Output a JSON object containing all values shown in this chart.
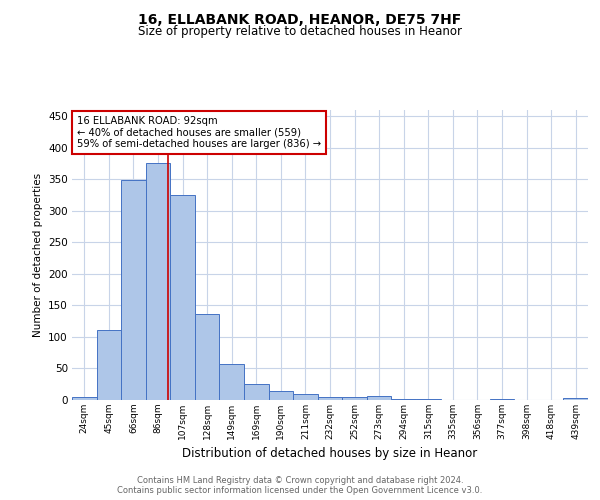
{
  "title1": "16, ELLABANK ROAD, HEANOR, DE75 7HF",
  "title2": "Size of property relative to detached houses in Heanor",
  "xlabel": "Distribution of detached houses by size in Heanor",
  "ylabel": "Number of detached properties",
  "categories": [
    "24sqm",
    "45sqm",
    "66sqm",
    "86sqm",
    "107sqm",
    "128sqm",
    "149sqm",
    "169sqm",
    "190sqm",
    "211sqm",
    "232sqm",
    "252sqm",
    "273sqm",
    "294sqm",
    "315sqm",
    "335sqm",
    "356sqm",
    "377sqm",
    "398sqm",
    "418sqm",
    "439sqm"
  ],
  "values": [
    5,
    111,
    349,
    376,
    325,
    136,
    57,
    26,
    14,
    9,
    4,
    4,
    6,
    2,
    1,
    0,
    0,
    1,
    0,
    0,
    3
  ],
  "bar_color": "#aec6e8",
  "bar_edge_color": "#4472c4",
  "vline_x": 3.4,
  "vline_color": "#cc0000",
  "annotation_text": "16 ELLABANK ROAD: 92sqm\n← 40% of detached houses are smaller (559)\n59% of semi-detached houses are larger (836) →",
  "annotation_box_color": "#ffffff",
  "annotation_box_edge": "#cc0000",
  "ylim": [
    0,
    460
  ],
  "yticks": [
    0,
    50,
    100,
    150,
    200,
    250,
    300,
    350,
    400,
    450
  ],
  "footer_text": "Contains HM Land Registry data © Crown copyright and database right 2024.\nContains public sector information licensed under the Open Government Licence v3.0.",
  "background_color": "#ffffff",
  "grid_color": "#c8d4e8"
}
